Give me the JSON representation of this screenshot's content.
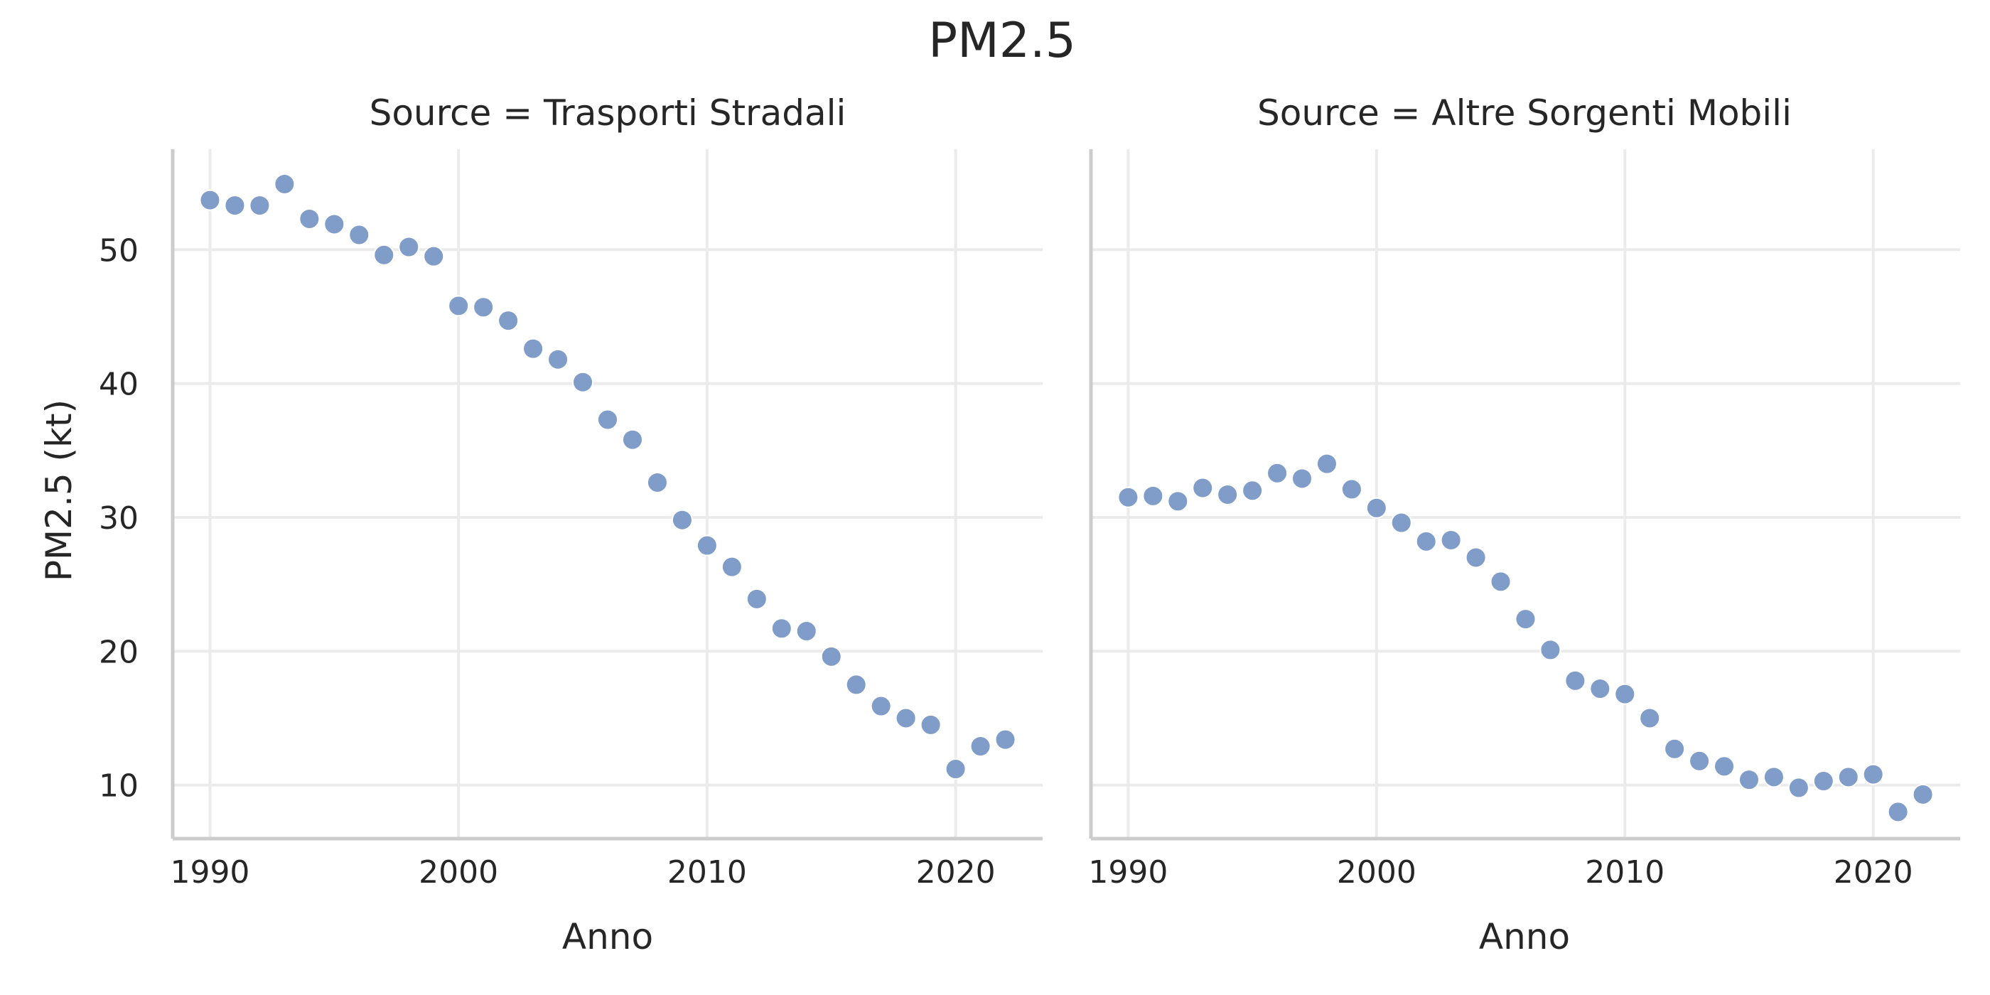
{
  "colors": {
    "marker": "#809cc8",
    "grid": "#ebebeb",
    "spine": "#cccccc",
    "text": "#262626",
    "background": "#ffffff"
  },
  "chart_data": {
    "type": "scatter",
    "title": "PM2.5",
    "ylabel": "PM2.5 (kt)",
    "xlabel": "Anno",
    "xlim": [
      1988.5,
      2023.5
    ],
    "ylim": [
      6,
      57.5
    ],
    "xticks": [
      1990,
      2000,
      2010,
      2020
    ],
    "yticks": [
      10,
      20,
      30,
      40,
      50
    ],
    "grid": true,
    "panels": [
      {
        "title": "Source = Trasporti Stradali",
        "x": [
          1990,
          1991,
          1992,
          1993,
          1994,
          1995,
          1996,
          1997,
          1998,
          1999,
          2000,
          2001,
          2002,
          2003,
          2004,
          2005,
          2006,
          2007,
          2008,
          2009,
          2010,
          2011,
          2012,
          2013,
          2014,
          2015,
          2016,
          2017,
          2018,
          2019,
          2020,
          2021,
          2022
        ],
        "y": [
          53.7,
          53.3,
          53.3,
          54.9,
          52.3,
          51.9,
          51.1,
          49.6,
          50.2,
          49.5,
          45.8,
          45.7,
          44.7,
          42.6,
          41.8,
          40.1,
          37.3,
          35.8,
          32.6,
          29.8,
          27.9,
          26.3,
          23.9,
          21.7,
          21.5,
          19.6,
          17.5,
          15.9,
          15.0,
          14.5,
          11.2,
          12.9,
          13.4
        ]
      },
      {
        "title": "Source = Altre Sorgenti Mobili",
        "x": [
          1990,
          1991,
          1992,
          1993,
          1994,
          1995,
          1996,
          1997,
          1998,
          1999,
          2000,
          2001,
          2002,
          2003,
          2004,
          2005,
          2006,
          2007,
          2008,
          2009,
          2010,
          2011,
          2012,
          2013,
          2014,
          2015,
          2016,
          2017,
          2018,
          2019,
          2020,
          2021,
          2022
        ],
        "y": [
          31.5,
          31.6,
          31.2,
          32.2,
          31.7,
          32.0,
          33.3,
          32.9,
          34.0,
          32.1,
          30.7,
          29.6,
          28.2,
          28.3,
          27.0,
          25.2,
          22.4,
          20.1,
          17.8,
          17.2,
          16.8,
          15.0,
          12.7,
          11.8,
          11.4,
          10.4,
          10.6,
          9.8,
          10.3,
          10.6,
          10.8,
          8.0,
          9.3
        ]
      }
    ]
  }
}
